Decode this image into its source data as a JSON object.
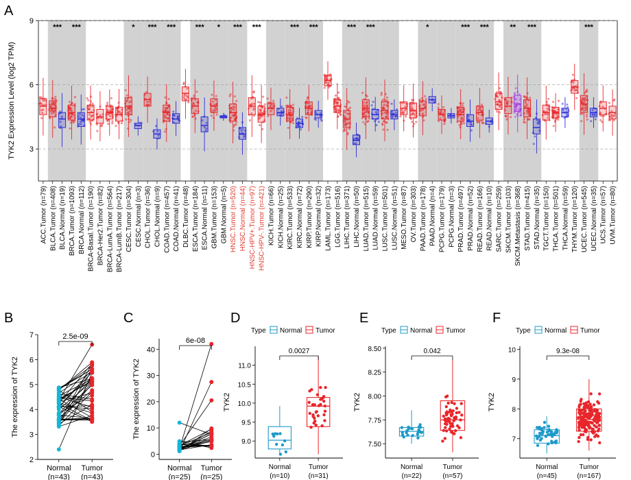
{
  "colors": {
    "tumor": "#e8262b",
    "normal": "#2a2ad8",
    "metastasis": "#a838e8",
    "normalTeal": "#1e9ac8",
    "pair": "#12b6d6",
    "shade": "#d2d2d2"
  },
  "panels": {
    "A": "A",
    "B": "B",
    "C": "C",
    "D": "D",
    "E": "E",
    "F": "F"
  },
  "chart_data": [
    {
      "panel": "A",
      "type": "box",
      "ylabel": "TYK2 Expression Level (log2 TPM)",
      "ylim": [
        1.5,
        9
      ],
      "yticks": [
        3,
        6,
        9
      ],
      "categories": [
        {
          "label": "ACC.Tumor (n=79)",
          "kind": "tumor",
          "median": 5.0,
          "q1": 4.6,
          "q3": 5.35
        },
        {
          "label": "BLCA.Tumor (n=408)",
          "kind": "tumor",
          "median": 4.9,
          "q1": 4.5,
          "q3": 5.25
        },
        {
          "label": "BLCA.Normal (n=19)",
          "kind": "normal",
          "median": 4.4,
          "q1": 4.0,
          "q3": 4.7
        },
        {
          "label": "BRCA.Tumor (n=1093)",
          "kind": "tumor",
          "median": 4.7,
          "q1": 4.35,
          "q3": 5.05
        },
        {
          "label": "BRCA.Normal (n=112)",
          "kind": "normal",
          "median": 4.4,
          "q1": 4.05,
          "q3": 4.7
        },
        {
          "label": "BRCA-Basal.Tumor (n=190)",
          "kind": "tumor",
          "median": 4.7,
          "q1": 4.35,
          "q3": 5.05
        },
        {
          "label": "BRCA-Her2.Tumor (n=82)",
          "kind": "tumor",
          "median": 4.5,
          "q1": 4.2,
          "q3": 4.85
        },
        {
          "label": "BRCA-LumA.Tumor (n=564)",
          "kind": "tumor",
          "median": 4.7,
          "q1": 4.4,
          "q3": 5.0
        },
        {
          "label": "BRCA-LumB.Tumor (n=217)",
          "kind": "tumor",
          "median": 4.6,
          "q1": 4.3,
          "q3": 4.95
        },
        {
          "label": "CESC.Tumor (n=304)",
          "kind": "tumor",
          "median": 5.0,
          "q1": 4.6,
          "q3": 5.4
        },
        {
          "label": "CESC.Normal (n=3)",
          "kind": "normal",
          "median": 4.1,
          "q1": 3.95,
          "q3": 4.2
        },
        {
          "label": "CHOL.Tumor (n=36)",
          "kind": "tumor",
          "median": 5.3,
          "q1": 5.0,
          "q3": 5.6
        },
        {
          "label": "CHOL.Normal (n=9)",
          "kind": "normal",
          "median": 3.7,
          "q1": 3.5,
          "q3": 3.9
        },
        {
          "label": "COAD.Tumor (n=457)",
          "kind": "tumor",
          "median": 4.7,
          "q1": 4.3,
          "q3": 5.05
        },
        {
          "label": "COAD.Normal (n=41)",
          "kind": "normal",
          "median": 4.4,
          "q1": 4.2,
          "q3": 4.65
        },
        {
          "label": "DLBC.Tumor (n=48)",
          "kind": "tumor",
          "median": 5.6,
          "q1": 5.25,
          "q3": 5.9
        },
        {
          "label": "ESCA.Tumor (n=184)",
          "kind": "tumor",
          "median": 5.0,
          "q1": 4.65,
          "q3": 5.35
        },
        {
          "label": "ESCA.Normal (n=11)",
          "kind": "normal",
          "median": 4.1,
          "q1": 3.8,
          "q3": 4.5
        },
        {
          "label": "GBM.Tumor (n=153)",
          "kind": "tumor",
          "median": 5.0,
          "q1": 4.7,
          "q3": 5.35
        },
        {
          "label": "GBM.Normal (n=5)",
          "kind": "normal",
          "median": 4.5,
          "q1": 4.45,
          "q3": 4.55
        },
        {
          "label": "HNSC.Tumor (n=520)",
          "kind": "tumor",
          "median": 4.7,
          "q1": 4.3,
          "q3": 5.1
        },
        {
          "label": "HNSC.Normal (n=44)",
          "kind": "normal",
          "median": 3.7,
          "q1": 3.45,
          "q3": 4.0
        },
        {
          "label": "HNSC-HPV+.Tumor (n=97)",
          "kind": "tumor",
          "median": 5.0,
          "q1": 4.6,
          "q3": 5.4
        },
        {
          "label": "HNSC-HPV-.Tumor (n=421)",
          "kind": "tumor",
          "median": 4.6,
          "q1": 4.25,
          "q3": 5.0
        },
        {
          "label": "KICH.Tumor (n=66)",
          "kind": "tumor",
          "median": 4.9,
          "q1": 4.6,
          "q3": 5.15
        },
        {
          "label": "KICH.Normal (n=25)",
          "kind": "normal",
          "median": 4.7,
          "q1": 4.55,
          "q3": 4.9
        },
        {
          "label": "KIRC.Tumor (n=533)",
          "kind": "tumor",
          "median": 4.6,
          "q1": 4.3,
          "q3": 4.95
        },
        {
          "label": "KIRC.Normal (n=72)",
          "kind": "normal",
          "median": 4.2,
          "q1": 4.0,
          "q3": 4.4
        },
        {
          "label": "KIRP.Tumor (n=290)",
          "kind": "tumor",
          "median": 4.9,
          "q1": 4.6,
          "q3": 5.2
        },
        {
          "label": "KIRP.Normal (n=32)",
          "kind": "normal",
          "median": 4.6,
          "q1": 4.45,
          "q3": 4.8
        },
        {
          "label": "LAML.Tumor (n=173)",
          "kind": "tumor",
          "median": 6.2,
          "q1": 5.95,
          "q3": 6.45
        },
        {
          "label": "LGG.Tumor (n=516)",
          "kind": "tumor",
          "median": 5.0,
          "q1": 4.7,
          "q3": 5.3
        },
        {
          "label": "LIHC.Tumor (n=371)",
          "kind": "tumor",
          "median": 4.4,
          "q1": 4.0,
          "q3": 4.8
        },
        {
          "label": "LIHC.Normal (n=50)",
          "kind": "normal",
          "median": 3.4,
          "q1": 3.2,
          "q3": 3.65
        },
        {
          "label": "LUAD.Tumor (n=515)",
          "kind": "tumor",
          "median": 4.9,
          "q1": 4.5,
          "q3": 5.3
        },
        {
          "label": "LUAD.Normal (n=59)",
          "kind": "normal",
          "median": 4.6,
          "q1": 4.4,
          "q3": 4.85
        },
        {
          "label": "LUSC.Tumor (n=501)",
          "kind": "tumor",
          "median": 4.8,
          "q1": 4.4,
          "q3": 5.2
        },
        {
          "label": "LUSC.Normal (n=51)",
          "kind": "normal",
          "median": 4.6,
          "q1": 4.4,
          "q3": 4.8
        },
        {
          "label": "MESO.Tumor (n=87)",
          "kind": "tumor",
          "median": 4.9,
          "q1": 4.6,
          "q3": 5.2
        },
        {
          "label": "OV.Tumor (n=303)",
          "kind": "tumor",
          "median": 4.8,
          "q1": 4.45,
          "q3": 5.15
        },
        {
          "label": "PAAD.Tumor (n=178)",
          "kind": "tumor",
          "median": 4.9,
          "q1": 4.55,
          "q3": 5.25
        },
        {
          "label": "PAAD.Normal (n=4)",
          "kind": "normal",
          "median": 5.3,
          "q1": 5.15,
          "q3": 5.45
        },
        {
          "label": "PCPG.Tumor (n=179)",
          "kind": "tumor",
          "median": 4.6,
          "q1": 4.35,
          "q3": 4.85
        },
        {
          "label": "PCPG.Normal (n=3)",
          "kind": "normal",
          "median": 4.55,
          "q1": 4.45,
          "q3": 4.65
        },
        {
          "label": "PRAD.Tumor (n=497)",
          "kind": "tumor",
          "median": 4.6,
          "q1": 4.3,
          "q3": 4.95
        },
        {
          "label": "PRAD.Normal (n=52)",
          "kind": "normal",
          "median": 4.3,
          "q1": 4.05,
          "q3": 4.6
        },
        {
          "label": "READ.Tumor (n=166)",
          "kind": "tumor",
          "median": 4.7,
          "q1": 4.35,
          "q3": 5.0
        },
        {
          "label": "READ.Normal (n=10)",
          "kind": "normal",
          "median": 4.3,
          "q1": 4.15,
          "q3": 4.45
        },
        {
          "label": "SARC.Tumor (n=259)",
          "kind": "tumor",
          "median": 5.2,
          "q1": 4.85,
          "q3": 5.6
        },
        {
          "label": "SKCM.Tumor (n=103)",
          "kind": "tumor",
          "median": 5.0,
          "q1": 4.65,
          "q3": 5.4
        },
        {
          "label": "SKCM.Metastasis (n=368)",
          "kind": "metastasis",
          "median": 5.1,
          "q1": 4.75,
          "q3": 5.5
        },
        {
          "label": "STAD.Tumor (n=415)",
          "kind": "tumor",
          "median": 4.9,
          "q1": 4.5,
          "q3": 5.3
        },
        {
          "label": "STAD.Normal (n=35)",
          "kind": "normal",
          "median": 4.0,
          "q1": 3.7,
          "q3": 4.4
        },
        {
          "label": "TGCT.Tumor (n=150)",
          "kind": "tumor",
          "median": 4.7,
          "q1": 4.35,
          "q3": 5.05
        },
        {
          "label": "THCA.Tumor (n=501)",
          "kind": "tumor",
          "median": 4.7,
          "q1": 4.45,
          "q3": 4.95
        },
        {
          "label": "THCA.Normal (n=59)",
          "kind": "normal",
          "median": 4.7,
          "q1": 4.5,
          "q3": 4.9
        },
        {
          "label": "THYM.Tumor (n=120)",
          "kind": "tumor",
          "median": 5.9,
          "q1": 5.6,
          "q3": 6.2
        },
        {
          "label": "UCEC.Tumor (n=545)",
          "kind": "tumor",
          "median": 5.1,
          "q1": 4.7,
          "q3": 5.5
        },
        {
          "label": "UCEC.Normal (n=35)",
          "kind": "normal",
          "median": 4.7,
          "q1": 4.5,
          "q3": 4.9
        },
        {
          "label": "UCS.Tumor (n=57)",
          "kind": "tumor",
          "median": 4.9,
          "q1": 4.6,
          "q3": 5.2
        },
        {
          "label": "UVM.Tumor (n=80)",
          "kind": "tumor",
          "median": 4.7,
          "q1": 4.4,
          "q3": 5.0
        }
      ],
      "shaded_groups": [
        [
          1,
          2
        ],
        [
          3,
          4
        ],
        [
          9,
          10
        ],
        [
          11,
          12
        ],
        [
          13,
          14
        ],
        [
          16,
          17
        ],
        [
          18,
          19
        ],
        [
          20,
          21
        ],
        [
          24,
          25
        ],
        [
          26,
          27
        ],
        [
          28,
          29
        ],
        [
          32,
          33
        ],
        [
          34,
          35
        ],
        [
          36,
          37
        ],
        [
          40,
          41
        ],
        [
          42,
          43
        ],
        [
          44,
          45
        ],
        [
          46,
          47
        ],
        [
          49,
          50
        ],
        [
          51,
          52
        ],
        [
          57,
          58
        ]
      ],
      "red_label_indices": [
        20,
        21,
        22,
        23
      ],
      "significance": [
        {
          "index": 1,
          "label": "***"
        },
        {
          "index": 3,
          "label": "***"
        },
        {
          "index": 9,
          "label": "*"
        },
        {
          "index": 11,
          "label": "***"
        },
        {
          "index": 13,
          "label": "***"
        },
        {
          "index": 16,
          "label": "***"
        },
        {
          "index": 18,
          "label": "*"
        },
        {
          "index": 20,
          "label": "***"
        },
        {
          "index": 22,
          "label": "***"
        },
        {
          "index": 26,
          "label": "***"
        },
        {
          "index": 28,
          "label": "***"
        },
        {
          "index": 32,
          "label": "***"
        },
        {
          "index": 34,
          "label": "***"
        },
        {
          "index": 40,
          "label": "*"
        },
        {
          "index": 44,
          "label": "***"
        },
        {
          "index": 46,
          "label": "***"
        },
        {
          "index": 49,
          "label": "**"
        },
        {
          "index": 51,
          "label": "***"
        },
        {
          "index": 57,
          "label": "***"
        }
      ]
    },
    {
      "panel": "B",
      "type": "paired",
      "ylabel": "The expression of TYK2",
      "ylim": [
        2,
        7
      ],
      "yticks": [
        2,
        3,
        4,
        5,
        6,
        7
      ],
      "categories": [
        "Normal\n(n=43)",
        "Tumor\n(n=43)"
      ],
      "pvalue": "2.5e-09",
      "n": 43,
      "normal_range": [
        3.3,
        4.9
      ],
      "tumor_range": [
        3.5,
        6.0
      ],
      "normal_outlier": 2.4,
      "tumor_outlier": 6.6
    },
    {
      "panel": "C",
      "type": "paired",
      "ylabel": "The expression of TYK2",
      "ylim": [
        -2,
        44
      ],
      "yticks": [
        0,
        10,
        20,
        30,
        40
      ],
      "categories": [
        "Normal\n(n=25)",
        "Tumor\n(n=25)"
      ],
      "pvalue": "6e-08",
      "n": 25,
      "normal_range": [
        1,
        5
      ],
      "tumor_range": [
        2,
        10
      ],
      "normal_outlier": 12,
      "tumor_outliers": [
        42,
        27.5,
        20.5
      ]
    },
    {
      "panel": "D",
      "type": "box_jitter",
      "ylabel": "TYK2",
      "ylim": [
        8.55,
        11.5
      ],
      "yticks": [
        9.0,
        9.5,
        10.0,
        10.5,
        11.0
      ],
      "tick_format": 1,
      "legend_title": "Type",
      "legend": [
        "Normal",
        "Tumor"
      ],
      "pvalue": "0.0027",
      "categories": [
        "Normal\n(n=10)",
        "Tumor\n(n=31)"
      ],
      "normal": {
        "median": 9.02,
        "q1": 8.79,
        "q3": 9.38,
        "min": 8.65,
        "max": 9.92,
        "n": 10
      },
      "tumor": {
        "median": 9.92,
        "q1": 9.38,
        "q3": 10.15,
        "min": 8.65,
        "max": 11.25,
        "n": 31
      }
    },
    {
      "panel": "E",
      "type": "box_jitter",
      "ylabel": "TYK2",
      "ylim": [
        7.35,
        8.52
      ],
      "yticks": [
        7.5,
        7.75,
        8.0,
        8.25,
        8.5
      ],
      "tick_format": 2,
      "legend_title": "Type",
      "legend": [
        "Normal",
        "Tumor"
      ],
      "pvalue": "0.042",
      "categories": [
        "Normal\n(n=22)",
        "Tumor\n(n=57)"
      ],
      "normal": {
        "median": 7.63,
        "q1": 7.58,
        "q3": 7.67,
        "min": 7.5,
        "max": 7.85,
        "n": 22
      },
      "tumor": {
        "median": 7.75,
        "q1": 7.64,
        "q3": 7.95,
        "min": 7.41,
        "max": 8.38,
        "n": 57
      }
    },
    {
      "panel": "F",
      "type": "box_jitter",
      "ylabel": "TYK2",
      "ylim": [
        6.35,
        10.1
      ],
      "yticks": [
        7,
        8,
        9,
        10
      ],
      "tick_format": 0,
      "legend_title": "Type",
      "legend": [
        "Normal",
        "Tumor"
      ],
      "pvalue": "9.3e-08",
      "categories": [
        "Normal\n(n=45)",
        "Tumor\n(n=167)"
      ],
      "normal": {
        "median": 7.1,
        "q1": 6.85,
        "q3": 7.3,
        "min": 6.5,
        "max": 7.75,
        "n": 45
      },
      "tumor": {
        "median": 7.65,
        "q1": 7.25,
        "q3": 8.0,
        "min": 6.6,
        "max": 9.0,
        "n": 167
      }
    }
  ]
}
